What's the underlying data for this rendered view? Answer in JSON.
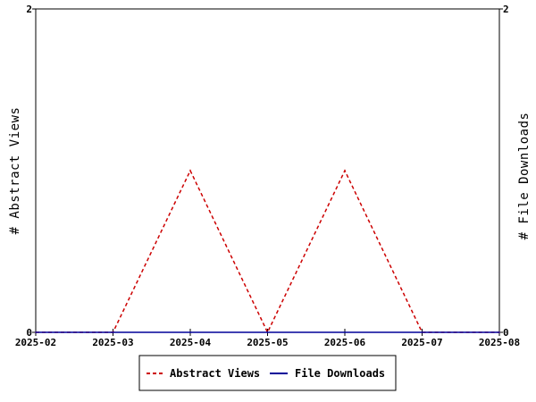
{
  "chart_data": {
    "type": "line",
    "categories": [
      "2025-02",
      "2025-03",
      "2025-04",
      "2025-05",
      "2025-06",
      "2025-07",
      "2025-08"
    ],
    "series": [
      {
        "name": "Abstract Views",
        "values": [
          0,
          0,
          1,
          0,
          1,
          0,
          0
        ],
        "color": "#cc0000",
        "style": "dashed",
        "axis": "left"
      },
      {
        "name": "File Downloads",
        "values": [
          0,
          0,
          0,
          0,
          0,
          0,
          0
        ],
        "color": "#000099",
        "style": "solid",
        "axis": "right"
      }
    ],
    "ylabel": "# Abstract Views",
    "y2label": "# File Downloads",
    "ylim": [
      0,
      2
    ],
    "y2lim": [
      0,
      2
    ],
    "yticks": [
      "0",
      "2"
    ],
    "y2ticks": [
      "0",
      "2"
    ],
    "grid": false,
    "legend_position": "bottom-center"
  }
}
